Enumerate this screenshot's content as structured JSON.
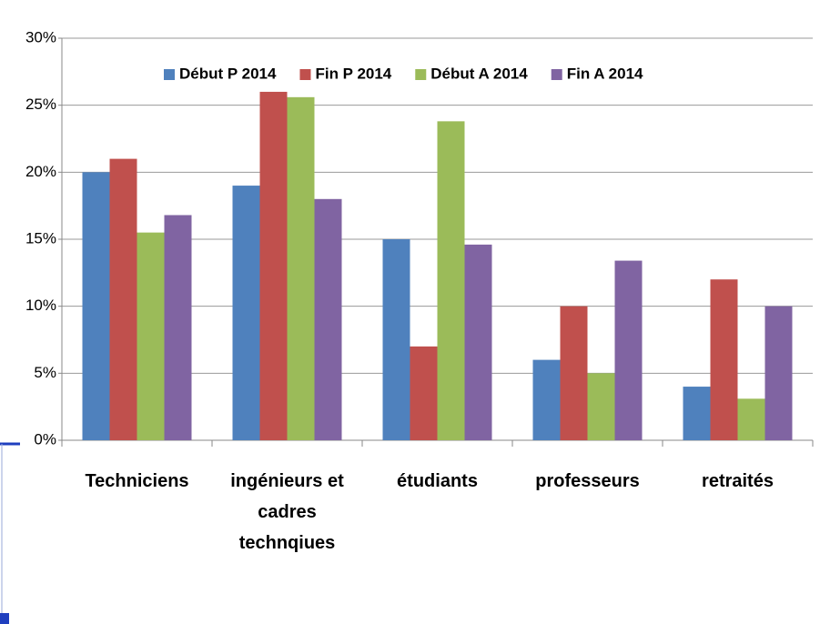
{
  "chart_data": {
    "type": "bar",
    "categories": [
      "Techniciens",
      "ingénieurs et cadres technqiues",
      "étudiants",
      "professeurs",
      "retraités"
    ],
    "series": [
      {
        "name": "Début P 2014",
        "color": "#4f81bd",
        "values": [
          20,
          19,
          15,
          6,
          4
        ]
      },
      {
        "name": "Fin P 2014",
        "color": "#c0504d",
        "values": [
          21,
          26,
          7,
          10,
          12
        ]
      },
      {
        "name": "Début A 2014",
        "color": "#9bbb59",
        "values": [
          15.5,
          25.6,
          23.8,
          5,
          3.1
        ]
      },
      {
        "name": "Fin A 2014",
        "color": "#8064a2",
        "values": [
          16.8,
          18,
          14.6,
          13.4,
          10
        ]
      }
    ],
    "ylim": [
      0,
      30
    ],
    "yticks": [
      {
        "value": 0,
        "label": "0%"
      },
      {
        "value": 5,
        "label": "5%"
      },
      {
        "value": 10,
        "label": "10%"
      },
      {
        "value": 15,
        "label": "15%"
      },
      {
        "value": 20,
        "label": "20%"
      },
      {
        "value": 25,
        "label": "25%"
      },
      {
        "value": 30,
        "label": "30%"
      }
    ],
    "grid": true,
    "legend": "top"
  }
}
